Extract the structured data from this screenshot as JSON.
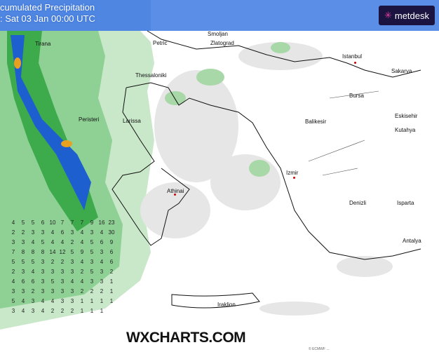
{
  "header": {
    "title_line1": "cumulated Precipitation",
    "title_line2": ": Sat 03 Jan 00:00 UTC"
  },
  "logo": {
    "text": "metdesk",
    "icon": "metdesk-asterisk-icon"
  },
  "watermark": "WXCHARTS.COM",
  "copyright": "© ECMWF ...",
  "colors": {
    "sea_top": "#5b8ee6",
    "land": "#ffffff",
    "precip_light": "#c9e8c9",
    "precip_mid": "#3daa4c",
    "precip_high": "#1e5fd0",
    "precip_max": "#e8a020"
  },
  "cities": [
    {
      "name": "Smoljan"
    },
    {
      "name": "Petric"
    },
    {
      "name": "Zlatograd"
    },
    {
      "name": "Istanbul"
    },
    {
      "name": "Sakarya"
    },
    {
      "name": "Thessaloniki"
    },
    {
      "name": "Bursa"
    },
    {
      "name": "Eskisehir"
    },
    {
      "name": "Larissa"
    },
    {
      "name": "Peristeri"
    },
    {
      "name": "Balikesir"
    },
    {
      "name": "Kutahya"
    },
    {
      "name": "Izmir"
    },
    {
      "name": "Athinai"
    },
    {
      "name": "Denizli"
    },
    {
      "name": "Isparta"
    },
    {
      "name": "Antalya"
    },
    {
      "name": "Iraklion"
    },
    {
      "name": "Tirana"
    }
  ],
  "precip_grid": [
    [
      "4",
      "5",
      "5",
      "6",
      "10",
      "7",
      "7",
      "7",
      "9",
      "16",
      "23"
    ],
    [
      "2",
      "2",
      "3",
      "3",
      "4",
      "6",
      "3",
      "4",
      "3",
      "4",
      "30"
    ],
    [
      "3",
      "3",
      "4",
      "5",
      "4",
      "4",
      "2",
      "4",
      "5",
      "6",
      "9"
    ],
    [
      "7",
      "8",
      "8",
      "8",
      "14",
      "12",
      "5",
      "9",
      "5",
      "3",
      "6"
    ],
    [
      "5",
      "5",
      "5",
      "3",
      "2",
      "2",
      "3",
      "4",
      "3",
      "4",
      "6"
    ],
    [
      "2",
      "3",
      "4",
      "3",
      "3",
      "3",
      "3",
      "2",
      "5",
      "3",
      "2"
    ],
    [
      "4",
      "6",
      "6",
      "3",
      "5",
      "3",
      "4",
      "4",
      "3",
      "3",
      "1"
    ],
    [
      "3",
      "3",
      "2",
      "3",
      "3",
      "3",
      "3",
      "2",
      "2",
      "2",
      "1"
    ],
    [
      "5",
      "4",
      "3",
      "4",
      "4",
      "3",
      "3",
      "1",
      "1",
      "1",
      "1"
    ],
    [
      "3",
      "4",
      "3",
      "4",
      "2",
      "2",
      "2",
      "1",
      "1",
      "1"
    ]
  ]
}
